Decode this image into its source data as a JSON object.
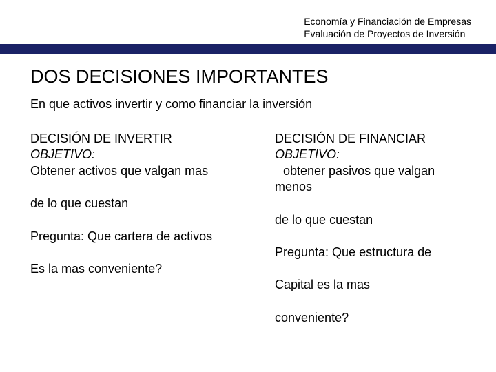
{
  "header": {
    "line1": "Economía y Financiación de Empresas",
    "line2": "Evaluación de Proyectos de Inversión"
  },
  "title": "DOS DECISIONES IMPORTANTES",
  "intro": "En que activos invertir y como financiar la inversión",
  "left": {
    "heading": "DECISIÓN DE INVERTIR",
    "objective_label": "OBJETIVO:",
    "objective_text_prefix": "Obtener activos que ",
    "objective_text_underlined": "valgan mas",
    "row2": "de lo que cuestan",
    "row3": "Pregunta: Que cartera de activos",
    "row4": "Es la mas conveniente?"
  },
  "right": {
    "heading": "DECISIÓN DE FINANCIAR",
    "objective_label": "OBJETIVO:",
    "objective_text_prefix": "obtener pasivos que ",
    "objective_text_underlined": "valgan menos",
    "row2": "de lo que cuestan",
    "row3": "Pregunta: Que estructura de",
    "row4": "Capital es la mas",
    "row5": "conveniente?"
  },
  "colors": {
    "bar": "#1a2266",
    "text": "#000000",
    "background": "#ffffff"
  }
}
